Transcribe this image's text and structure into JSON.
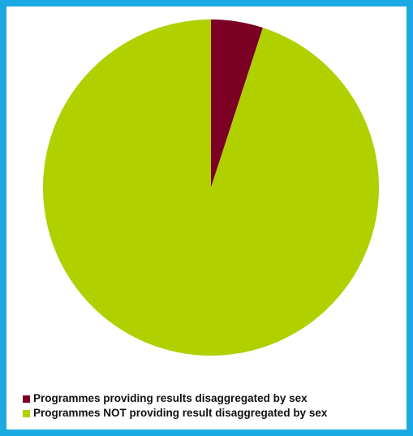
{
  "chart_data": {
    "type": "pie",
    "title": "",
    "slices": [
      {
        "label": "Programmes providing results disaggregated by sex",
        "value": 5,
        "color": "#7b0023"
      },
      {
        "label": "Programmes NOT providing result disaggregated by sex",
        "value": 95,
        "color": "#b0d000"
      }
    ],
    "start_angle_deg": 0,
    "direction": "clockwise",
    "legend_position": "bottom-left",
    "frame_color": "#1aa9e0"
  }
}
